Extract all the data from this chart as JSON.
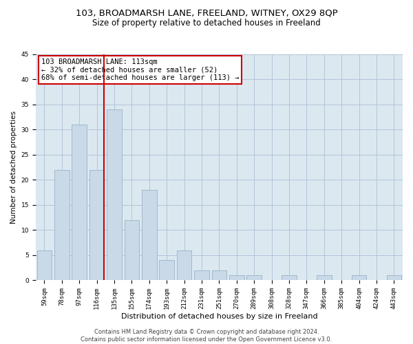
{
  "title1": "103, BROADMARSH LANE, FREELAND, WITNEY, OX29 8QP",
  "title2": "Size of property relative to detached houses in Freeland",
  "xlabel": "Distribution of detached houses by size in Freeland",
  "ylabel": "Number of detached properties",
  "categories": [
    "59sqm",
    "78sqm",
    "97sqm",
    "116sqm",
    "135sqm",
    "155sqm",
    "174sqm",
    "193sqm",
    "212sqm",
    "231sqm",
    "251sqm",
    "270sqm",
    "289sqm",
    "308sqm",
    "328sqm",
    "347sqm",
    "366sqm",
    "385sqm",
    "404sqm",
    "424sqm",
    "443sqm"
  ],
  "values": [
    6,
    22,
    31,
    22,
    34,
    12,
    18,
    4,
    6,
    2,
    2,
    1,
    1,
    0,
    1,
    0,
    1,
    0,
    1,
    0,
    1
  ],
  "bar_color": "#c9d9e8",
  "bar_edge_color": "#a0b8cc",
  "vline_index": 3,
  "vline_color": "#cc0000",
  "annotation_text": "103 BROADMARSH LANE: 113sqm\n← 32% of detached houses are smaller (52)\n68% of semi-detached houses are larger (113) →",
  "annotation_box_color": "#ffffff",
  "annotation_box_edge_color": "#cc0000",
  "ylim": [
    0,
    45
  ],
  "yticks": [
    0,
    5,
    10,
    15,
    20,
    25,
    30,
    35,
    40,
    45
  ],
  "grid_color": "#b0c4d8",
  "background_color": "#dce8f0",
  "footer_text": "Contains HM Land Registry data © Crown copyright and database right 2024.\nContains public sector information licensed under the Open Government Licence v3.0.",
  "title1_fontsize": 9.5,
  "title2_fontsize": 8.5,
  "xlabel_fontsize": 8,
  "ylabel_fontsize": 7.5,
  "tick_fontsize": 6.5,
  "annotation_fontsize": 7.5,
  "footer_fontsize": 6
}
